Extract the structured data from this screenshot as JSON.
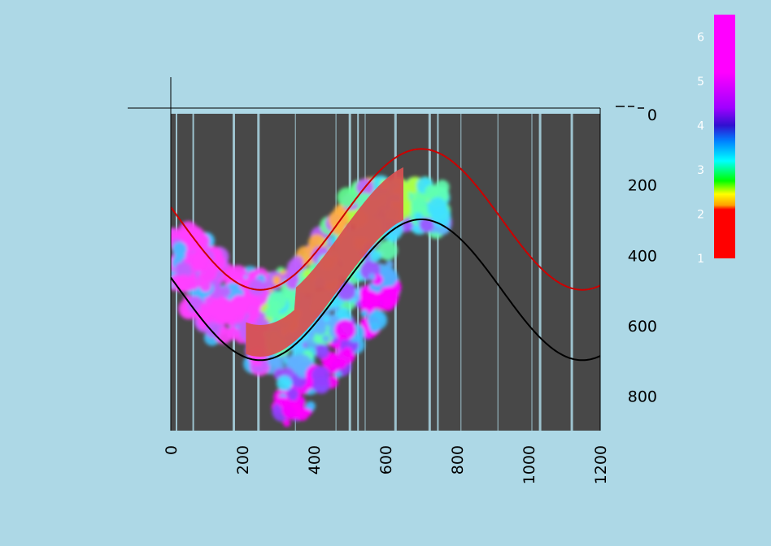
{
  "chart_data": {
    "type": "heatmap",
    "title": "",
    "xlabel": "",
    "ylabel": "",
    "xlim": [
      0,
      1200
    ],
    "ylim": [
      0,
      900
    ],
    "y_inverted": true,
    "x_ticks": [
      "0",
      "200",
      "400",
      "600",
      "800",
      "1000",
      "1200"
    ],
    "x_tick_values": [
      0,
      200,
      400,
      600,
      800,
      1000,
      1200
    ],
    "y_ticks": [
      "0",
      "200",
      "400",
      "600",
      "800"
    ],
    "y_tick_values": [
      0,
      200,
      400,
      600,
      800
    ],
    "colorbar": {
      "range": [
        1,
        6.5
      ],
      "ticks": [
        "1",
        "2",
        "3",
        "4",
        "5",
        "6"
      ],
      "tick_values": [
        1,
        2,
        3,
        4,
        5,
        6
      ],
      "colors": [
        {
          "value": 1.0,
          "color": "#ff0000"
        },
        {
          "value": 2.1,
          "color": "#ff0000"
        },
        {
          "value": 2.2,
          "color": "#ffa000"
        },
        {
          "value": 2.45,
          "color": "#ffff00"
        },
        {
          "value": 2.75,
          "color": "#00ff00"
        },
        {
          "value": 3.2,
          "color": "#00ffff"
        },
        {
          "value": 3.65,
          "color": "#0080ff"
        },
        {
          "value": 4.0,
          "color": "#3010d0"
        },
        {
          "value": 4.4,
          "color": "#a000ff"
        },
        {
          "value": 5.2,
          "color": "#ff00ff"
        },
        {
          "value": 6.5,
          "color": "#ff00ff"
        }
      ]
    },
    "layer": {
      "lower_boundary": {
        "x0": 0,
        "center_depth": 500,
        "amplitude": 200,
        "period": 900,
        "color": "#000000"
      },
      "upper_boundary": {
        "x0": 0,
        "center_depth": 300,
        "amplitude": 200,
        "period": 900,
        "color": "#cc0000"
      }
    },
    "plume_blob_extent": {
      "x": [
        0,
        760
      ],
      "depth": [
        200,
        880
      ]
    },
    "colors": {
      "background": "#add8e6",
      "plot_background": "#484848",
      "layer_fill": "#d65252",
      "stripe": "#add8e6"
    }
  }
}
